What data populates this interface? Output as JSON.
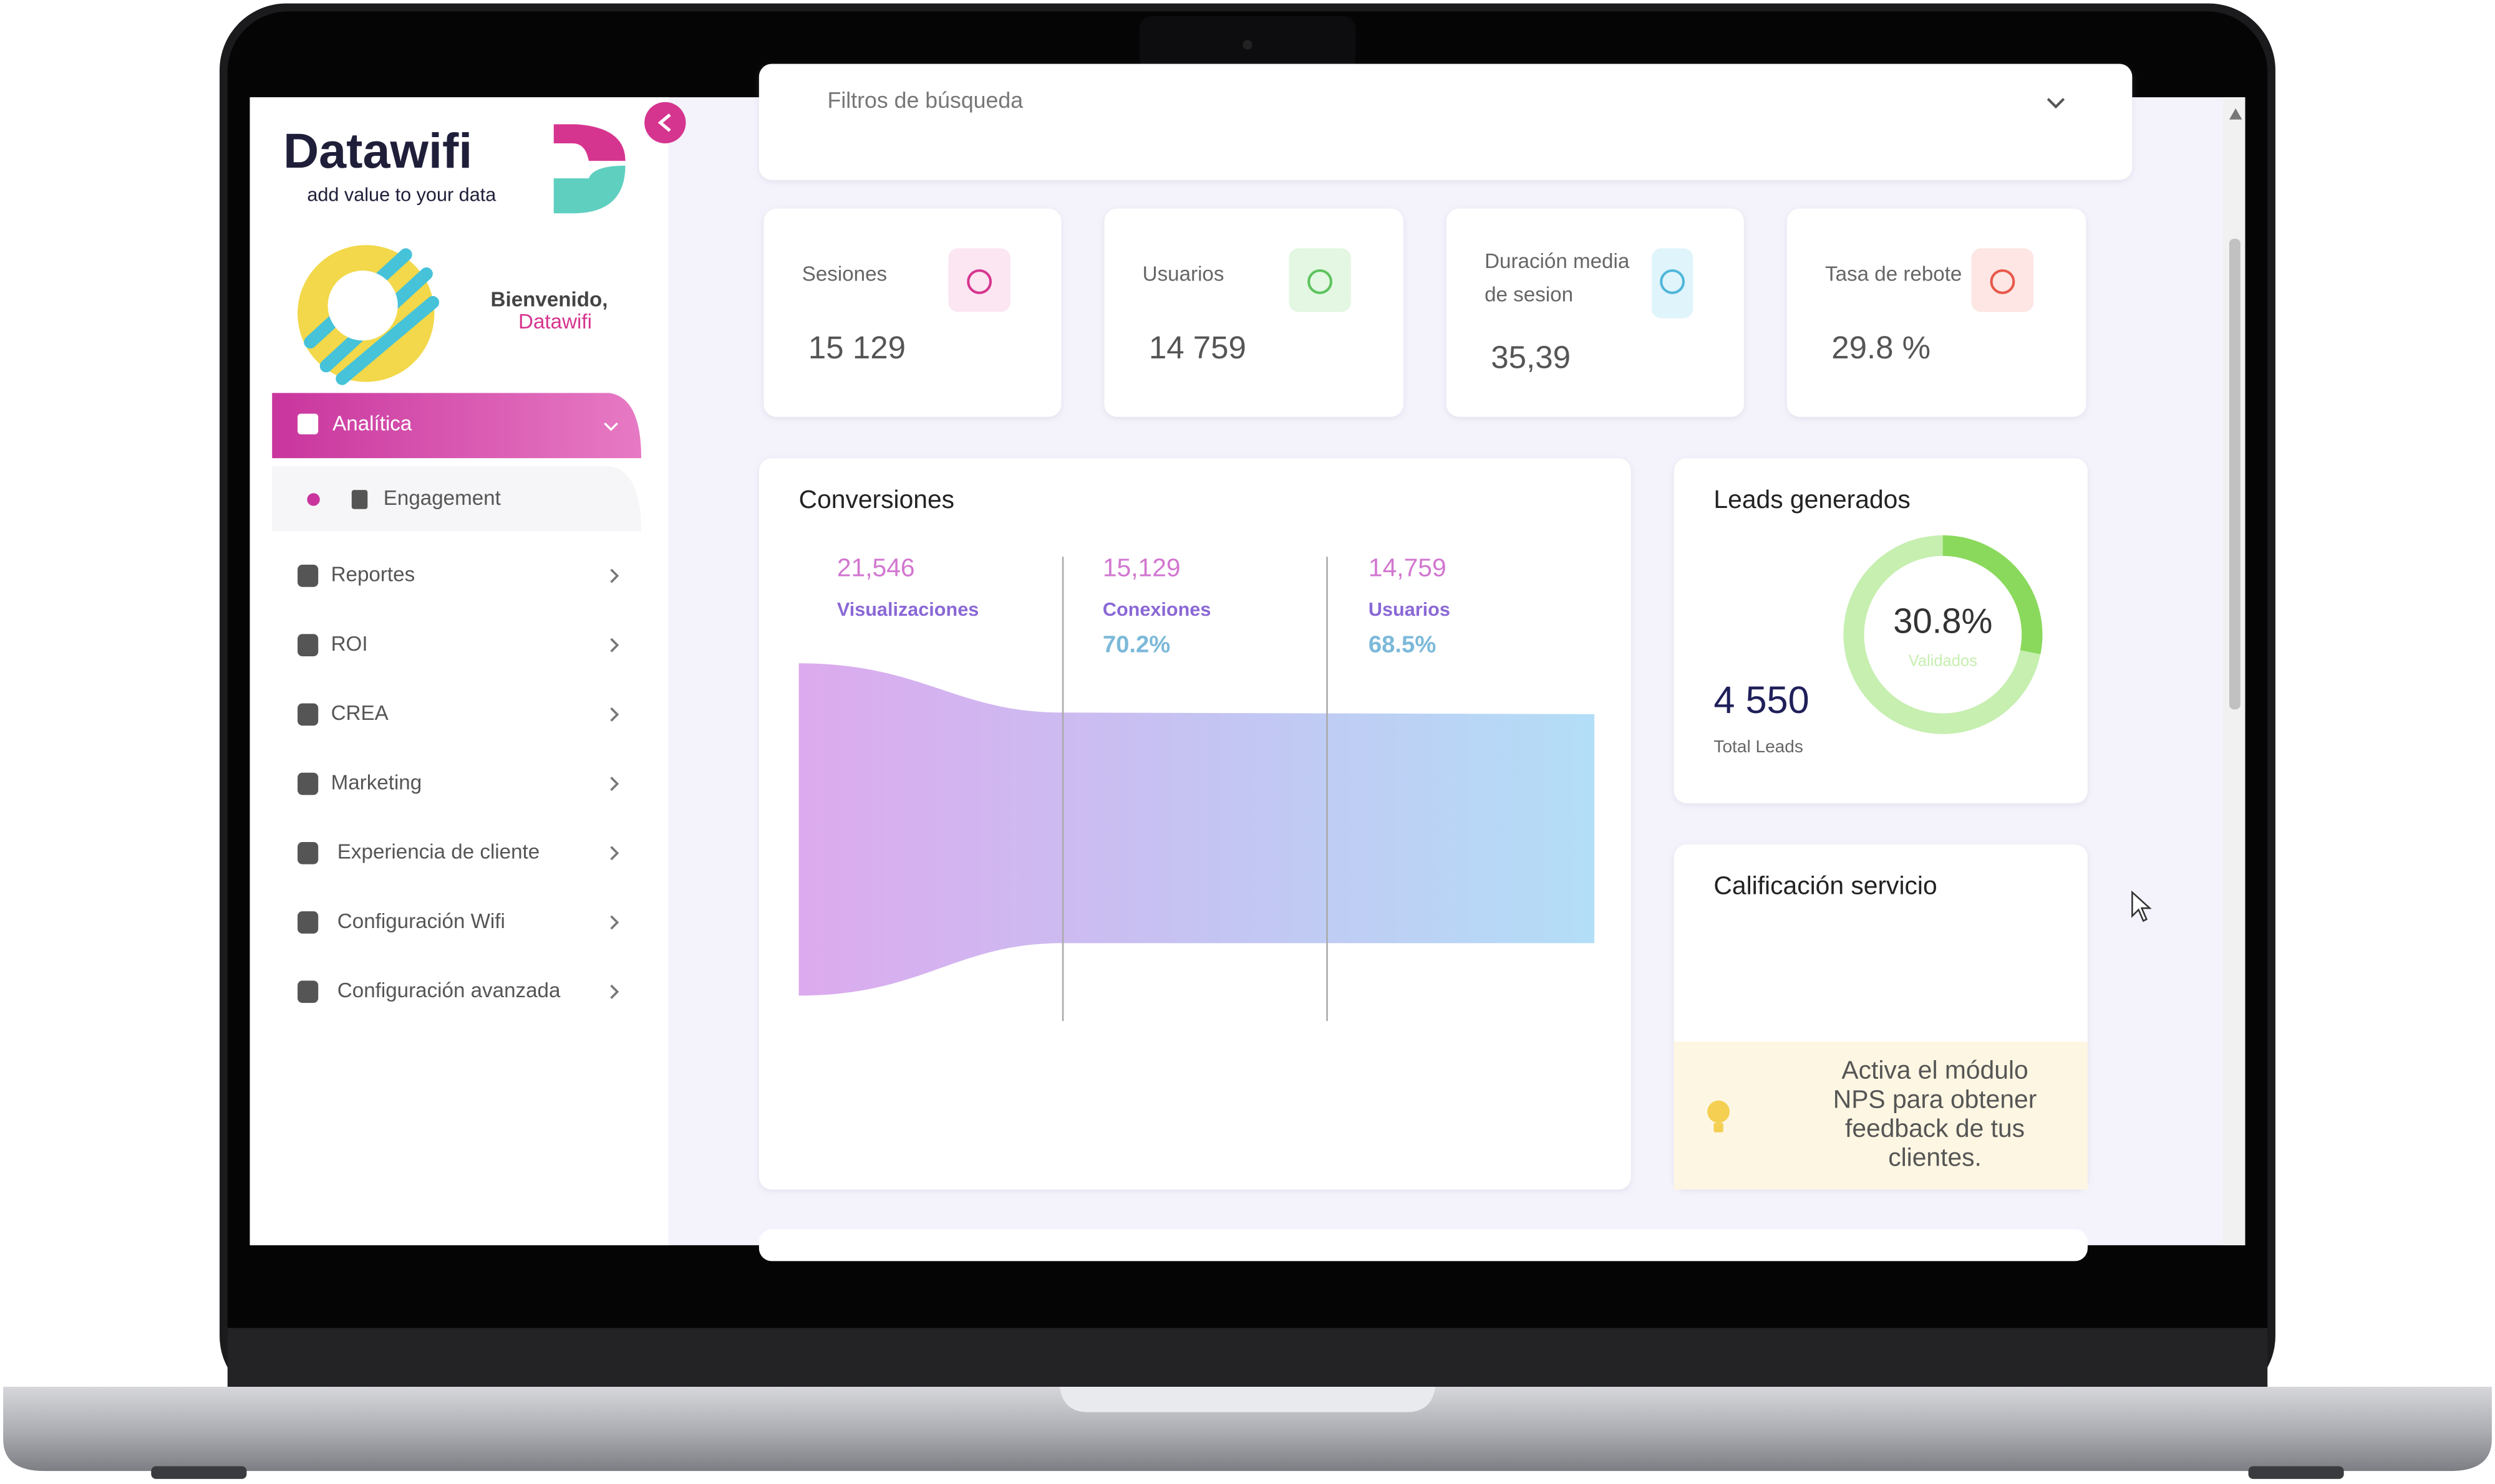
{
  "sidebar": {
    "logo": "Datawifi",
    "tagline": "add value to your data",
    "welcome": "Bienvenido,",
    "user": "Datawifi",
    "active": "Analítica",
    "submenu": [
      "Engagement"
    ],
    "menu": [
      "Reportes",
      "ROI",
      "CREA",
      "Marketing",
      "Experiencia de cliente",
      "Configuración Wifi",
      "Configuración avanzada"
    ]
  },
  "filters": "Filtros de búsqueda",
  "kpis": [
    {
      "label": "Sesiones",
      "value": "15 129"
    },
    {
      "label": "Usuarios",
      "value": "14 759"
    },
    {
      "label": [
        "Duración media",
        "de sesion"
      ],
      "value": "35,39"
    },
    {
      "label": "Tasa de rebote",
      "value": "29.8 %"
    }
  ],
  "conversions": {
    "title": "Conversiones",
    "steps": [
      {
        "value": "21,546",
        "label": "Visualizaciones"
      },
      {
        "value": "15,129",
        "label": "Conexiones",
        "rate": "70.2%"
      },
      {
        "value": "14,759",
        "label": "Usuarios",
        "rate": "68.5%"
      }
    ]
  },
  "leads": {
    "title": "Leads generados",
    "total": "4 550",
    "total_label": "Total Leads",
    "percent": "30.8%",
    "percent_label": "Validados"
  },
  "rating": {
    "title": "Calificación servicio",
    "message": [
      "Activa el módulo",
      "NPS para obtener",
      "feedback de tus",
      "clientes."
    ]
  }
}
